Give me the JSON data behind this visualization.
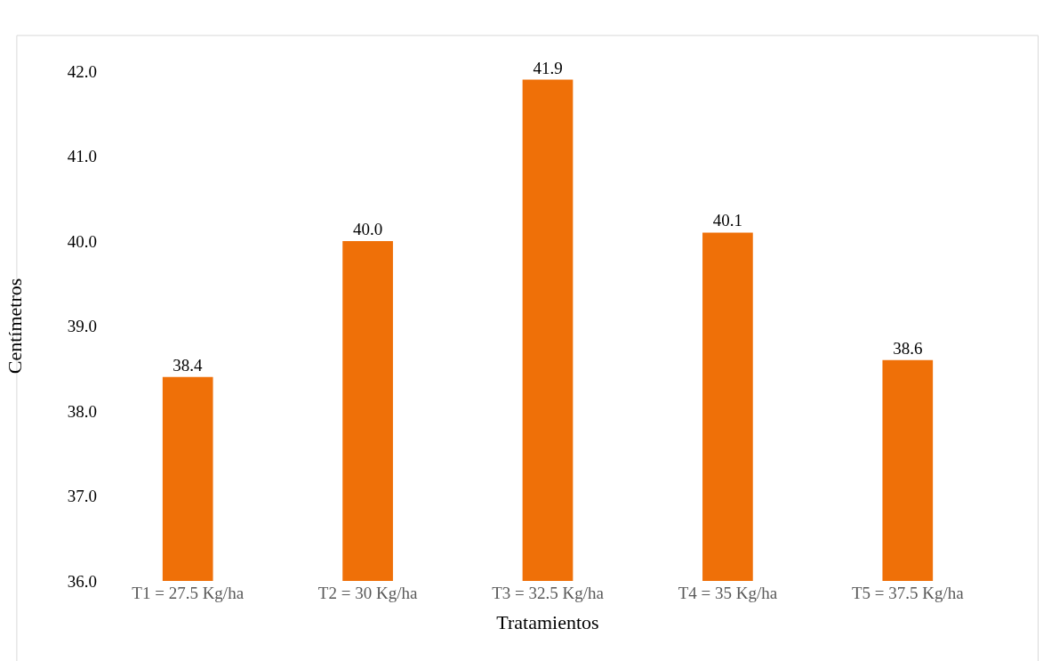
{
  "chart_data": {
    "type": "bar",
    "xlabel": "Tratamientos",
    "ylabel": "Centímetros",
    "categories": [
      "T1 = 27.5 Kg/ha",
      "T2 = 30 Kg/ha",
      "T3 = 32.5 Kg/ha",
      "T4 = 35 Kg/ha",
      "T5 = 37.5 Kg/ha"
    ],
    "values": [
      38.4,
      40.0,
      41.9,
      40.1,
      38.6
    ],
    "value_labels": [
      "38.4",
      "40.0",
      "41.9",
      "40.1",
      "38.6"
    ],
    "color": "#ef7008",
    "ylim": [
      36,
      42
    ],
    "yticks": [
      {
        "value": 36,
        "label": "36.0"
      },
      {
        "value": 37,
        "label": "37.0"
      },
      {
        "value": 38,
        "label": "38.0"
      },
      {
        "value": 39,
        "label": "39.0"
      },
      {
        "value": 40,
        "label": "40.0"
      },
      {
        "value": 41,
        "label": "41.0"
      },
      {
        "value": 42,
        "label": "42.0"
      }
    ],
    "legend": false
  }
}
